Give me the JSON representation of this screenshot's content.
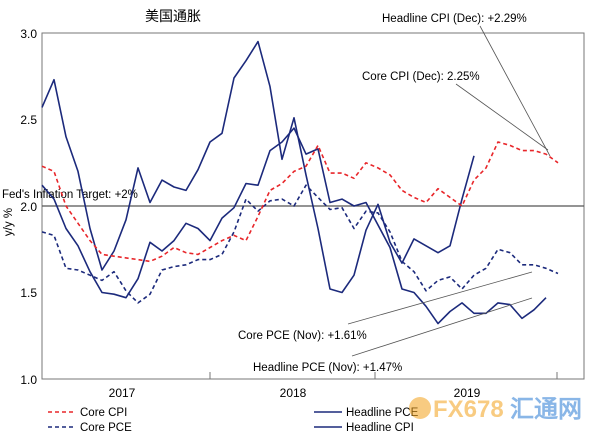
{
  "chart_data": {
    "type": "line",
    "title": "美国通胀",
    "ylabel": "y/y %",
    "ylim": [
      1.0,
      3.0
    ],
    "y_ticks": [
      "1.0",
      "1.5",
      "2.0",
      "2.5",
      "3.0"
    ],
    "x_tick_labels": [
      "2017",
      "2018",
      "2019"
    ],
    "grid": false,
    "legend_position": "bottom",
    "reference_line": {
      "value": 2.0,
      "label": "Fed's Inflation Target: +2%"
    },
    "series": [
      {
        "name": "Core CPI",
        "color": "#e8262a",
        "style": "dashed",
        "values": [
          2.23,
          2.2,
          2.0,
          1.9,
          1.8,
          1.72,
          1.71,
          1.7,
          1.69,
          1.68,
          1.71,
          1.76,
          1.73,
          1.72,
          1.76,
          1.8,
          1.83,
          1.8,
          1.94,
          2.09,
          2.13,
          2.2,
          2.23,
          2.35,
          2.19,
          2.19,
          2.16,
          2.25,
          2.22,
          2.18,
          2.09,
          2.05,
          2.02,
          2.1,
          2.05,
          2.0,
          2.15,
          2.22,
          2.37,
          2.35,
          2.32,
          2.32,
          2.3,
          2.25
        ]
      },
      {
        "name": "Core PCE",
        "color": "#1c2a7c",
        "style": "dashed",
        "values": [
          1.85,
          1.83,
          1.64,
          1.63,
          1.6,
          1.57,
          1.62,
          1.51,
          1.44,
          1.49,
          1.63,
          1.65,
          1.66,
          1.69,
          1.69,
          1.72,
          1.85,
          2.04,
          1.97,
          2.03,
          2.04,
          2.0,
          2.12,
          2.05,
          1.98,
          1.99,
          1.87,
          1.97,
          1.96,
          1.85,
          1.68,
          1.62,
          1.51,
          1.57,
          1.59,
          1.52,
          1.6,
          1.64,
          1.75,
          1.73,
          1.66,
          1.66,
          1.64,
          1.61
        ]
      },
      {
        "name": "Headline PCE",
        "color": "#1c2a7c",
        "style": "solid",
        "values": [
          2.12,
          2.04,
          1.87,
          1.77,
          1.62,
          1.5,
          1.49,
          1.47,
          1.58,
          1.79,
          1.74,
          1.8,
          1.9,
          1.87,
          1.8,
          1.93,
          1.99,
          2.13,
          2.12,
          2.32,
          2.37,
          2.45,
          2.3,
          2.33,
          2.02,
          2.04,
          2.0,
          2.02,
          1.89,
          1.76,
          1.52,
          1.5,
          1.42,
          1.32,
          1.39,
          1.44,
          1.38,
          1.38,
          1.44,
          1.43,
          1.35,
          1.4,
          1.47
        ]
      },
      {
        "name": "Headline CPI",
        "color": "#1c2a7c",
        "style": "solid",
        "values": [
          2.57,
          2.73,
          2.4,
          2.2,
          1.87,
          1.63,
          1.74,
          1.92,
          2.22,
          2.02,
          2.15,
          2.11,
          2.09,
          2.21,
          2.37,
          2.42,
          2.74,
          2.84,
          2.95,
          2.69,
          2.27,
          2.51,
          2.18,
          1.87,
          1.52,
          1.5,
          1.6,
          1.86,
          2.01,
          1.79,
          1.67,
          1.81,
          1.77,
          1.73,
          1.77,
          2.04,
          2.29
        ]
      }
    ],
    "annotations": [
      {
        "text": "Headline CPI (Dec): +2.29%"
      },
      {
        "text": "Core CPI (Dec): 2.25%"
      },
      {
        "text": "Core PCE (Nov): +1.61%"
      },
      {
        "text": "Headline PCE (Nov): +1.47%"
      }
    ]
  },
  "watermark": {
    "text": "FX678",
    "cn": "汇通网"
  }
}
